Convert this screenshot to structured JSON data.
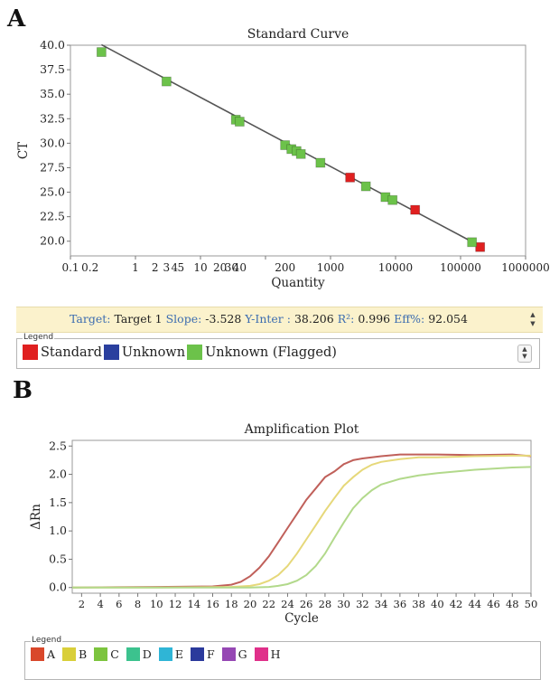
{
  "panel_a": {
    "label": "A",
    "stats": {
      "target_label": "Target:",
      "target_value": "Target 1",
      "slope_label": "Slope:",
      "slope_value": "-3.528",
      "yinter_label": "Y-Inter :",
      "yinter_value": "38.206",
      "r2_label": "R²:",
      "r2_value": "0.996",
      "eff_label": "Eff%:",
      "eff_value": "92.054"
    },
    "legend": {
      "title": "Legend",
      "items": [
        {
          "label": "Standard",
          "color": "#e02020"
        },
        {
          "label": "Unknown",
          "color": "#2a3f9e"
        },
        {
          "label": "Unknown (Flagged)",
          "color": "#6cc24a"
        }
      ]
    }
  },
  "panel_b": {
    "label": "B",
    "legend": {
      "title": "Legend",
      "items": [
        {
          "label": "A",
          "color": "#d9482b"
        },
        {
          "label": "B",
          "color": "#d9cf3a"
        },
        {
          "label": "C",
          "color": "#7cc43e"
        },
        {
          "label": "D",
          "color": "#3cc28e"
        },
        {
          "label": "E",
          "color": "#2fb5d6"
        },
        {
          "label": "F",
          "color": "#2b3a9c"
        },
        {
          "label": "G",
          "color": "#9648b4"
        },
        {
          "label": "H",
          "color": "#e0308a"
        }
      ]
    }
  },
  "chart_data": [
    {
      "type": "scatter",
      "title": "Standard Curve",
      "xlabel": "Quantity",
      "ylabel": "CT",
      "xscale": "log",
      "xlim": [
        0.1,
        1000000
      ],
      "ylim": [
        18.5,
        40
      ],
      "yticks": [
        20.0,
        22.5,
        25.0,
        27.5,
        30.0,
        32.5,
        35.0,
        37.5,
        40.0
      ],
      "ytick_labels": [
        "20.0",
        "22.5",
        "25.0",
        "27.5",
        "30.0",
        "32.5",
        "35.0",
        "37.5",
        "40.0"
      ],
      "xtick_labels": [
        {
          "value": 0.1,
          "label": "0.1"
        },
        {
          "value": 0.2,
          "label": "0.2"
        },
        {
          "value": 1,
          "label": "1"
        },
        {
          "value": 2,
          "label": "2"
        },
        {
          "value": 3,
          "label": "3"
        },
        {
          "value": 4,
          "label": "4"
        },
        {
          "value": 5,
          "label": "5"
        },
        {
          "value": 10,
          "label": "10"
        },
        {
          "value": 20,
          "label": "20"
        },
        {
          "value": 30,
          "label": "30"
        },
        {
          "value": 40,
          "label": "40"
        },
        {
          "value": 200,
          "label": "200"
        },
        {
          "value": 1000,
          "label": "1000"
        },
        {
          "value": 10000,
          "label": "10000"
        },
        {
          "value": 100000,
          "label": "100000"
        },
        {
          "value": 1000000,
          "label": "1000000"
        }
      ],
      "fit_line": {
        "slope": -3.528,
        "intercept": 38.206,
        "x_range": [
          0.3,
          200000
        ]
      },
      "line_color": "#555555",
      "series": [
        {
          "name": "Standard",
          "color": "#e02020",
          "points": [
            [
              2000,
              26.5
            ],
            [
              20000,
              23.2
            ],
            [
              200000,
              19.4
            ]
          ]
        },
        {
          "name": "Unknown (Flagged)",
          "color": "#6cc24a",
          "points": [
            [
              0.3,
              39.3
            ],
            [
              3,
              36.3
            ],
            [
              35,
              32.4
            ],
            [
              40,
              32.2
            ],
            [
              200,
              29.8
            ],
            [
              250,
              29.4
            ],
            [
              300,
              29.2
            ],
            [
              350,
              28.9
            ],
            [
              700,
              28.0
            ],
            [
              3500,
              25.6
            ],
            [
              7000,
              24.5
            ],
            [
              9000,
              24.2
            ],
            [
              150000,
              19.9
            ]
          ]
        }
      ]
    },
    {
      "type": "line",
      "title": "Amplification Plot",
      "xlabel": "Cycle",
      "ylabel": "ΔRn",
      "xlim": [
        1,
        50
      ],
      "ylim": [
        -0.1,
        2.6
      ],
      "xticks": [
        2,
        4,
        6,
        8,
        10,
        12,
        14,
        16,
        18,
        20,
        22,
        24,
        26,
        28,
        30,
        32,
        34,
        36,
        38,
        40,
        42,
        44,
        46,
        48,
        50
      ],
      "yticks": [
        0.0,
        0.5,
        1.0,
        1.5,
        2.0,
        2.5
      ],
      "ytick_labels": [
        "0.0",
        "0.5",
        "1.0",
        "1.5",
        "2.0",
        "2.5"
      ],
      "series": [
        {
          "color": "#c0605a",
          "x": [
            1,
            10,
            16,
            18,
            19,
            20,
            21,
            22,
            23,
            24,
            25,
            26,
            27,
            28,
            29,
            30,
            31,
            32,
            34,
            36,
            38,
            40,
            44,
            48,
            50
          ],
          "y": [
            0.0,
            0.01,
            0.02,
            0.05,
            0.1,
            0.2,
            0.35,
            0.55,
            0.8,
            1.05,
            1.3,
            1.55,
            1.75,
            1.95,
            2.05,
            2.18,
            2.25,
            2.28,
            2.32,
            2.35,
            2.35,
            2.35,
            2.34,
            2.35,
            2.32
          ]
        },
        {
          "color": "#e6d87a",
          "x": [
            1,
            10,
            18,
            20,
            21,
            22,
            23,
            24,
            25,
            26,
            27,
            28,
            29,
            30,
            31,
            32,
            33,
            34,
            36,
            38,
            40,
            44,
            48,
            50
          ],
          "y": [
            0.0,
            0.0,
            0.01,
            0.03,
            0.06,
            0.12,
            0.22,
            0.38,
            0.6,
            0.85,
            1.1,
            1.35,
            1.58,
            1.8,
            1.95,
            2.08,
            2.17,
            2.22,
            2.27,
            2.3,
            2.3,
            2.32,
            2.33,
            2.33
          ]
        },
        {
          "color": "#b2d98b",
          "x": [
            1,
            10,
            20,
            22,
            23,
            24,
            25,
            26,
            27,
            28,
            29,
            30,
            31,
            32,
            33,
            34,
            36,
            38,
            40,
            42,
            44,
            46,
            48,
            50
          ],
          "y": [
            0.0,
            0.0,
            0.0,
            0.01,
            0.03,
            0.06,
            0.12,
            0.22,
            0.38,
            0.6,
            0.88,
            1.15,
            1.4,
            1.58,
            1.72,
            1.82,
            1.92,
            1.98,
            2.02,
            2.05,
            2.08,
            2.1,
            2.12,
            2.13
          ]
        }
      ]
    }
  ]
}
